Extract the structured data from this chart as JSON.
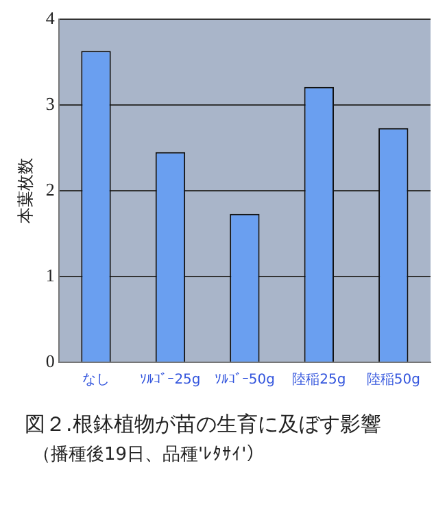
{
  "chart_data": {
    "type": "bar",
    "title": "図２.根鉢植物が苗の生育に及ぼす影響",
    "subtitle": "（播種後19日、品種'ﾚﾀｻｲ'）",
    "ylabel": "本葉枚数",
    "categories": [
      "なし",
      "ｿﾙｺﾞｰ25g",
      "ｿﾙｺﾞｰ50g",
      "陸稲25g",
      "陸稲50g"
    ],
    "values": [
      3.63,
      2.45,
      1.73,
      3.21,
      2.73
    ],
    "color": "#6a9ff0",
    "ylim": [
      0,
      4
    ],
    "yticks": [
      0,
      1,
      2,
      3,
      4
    ],
    "grid": "y"
  }
}
